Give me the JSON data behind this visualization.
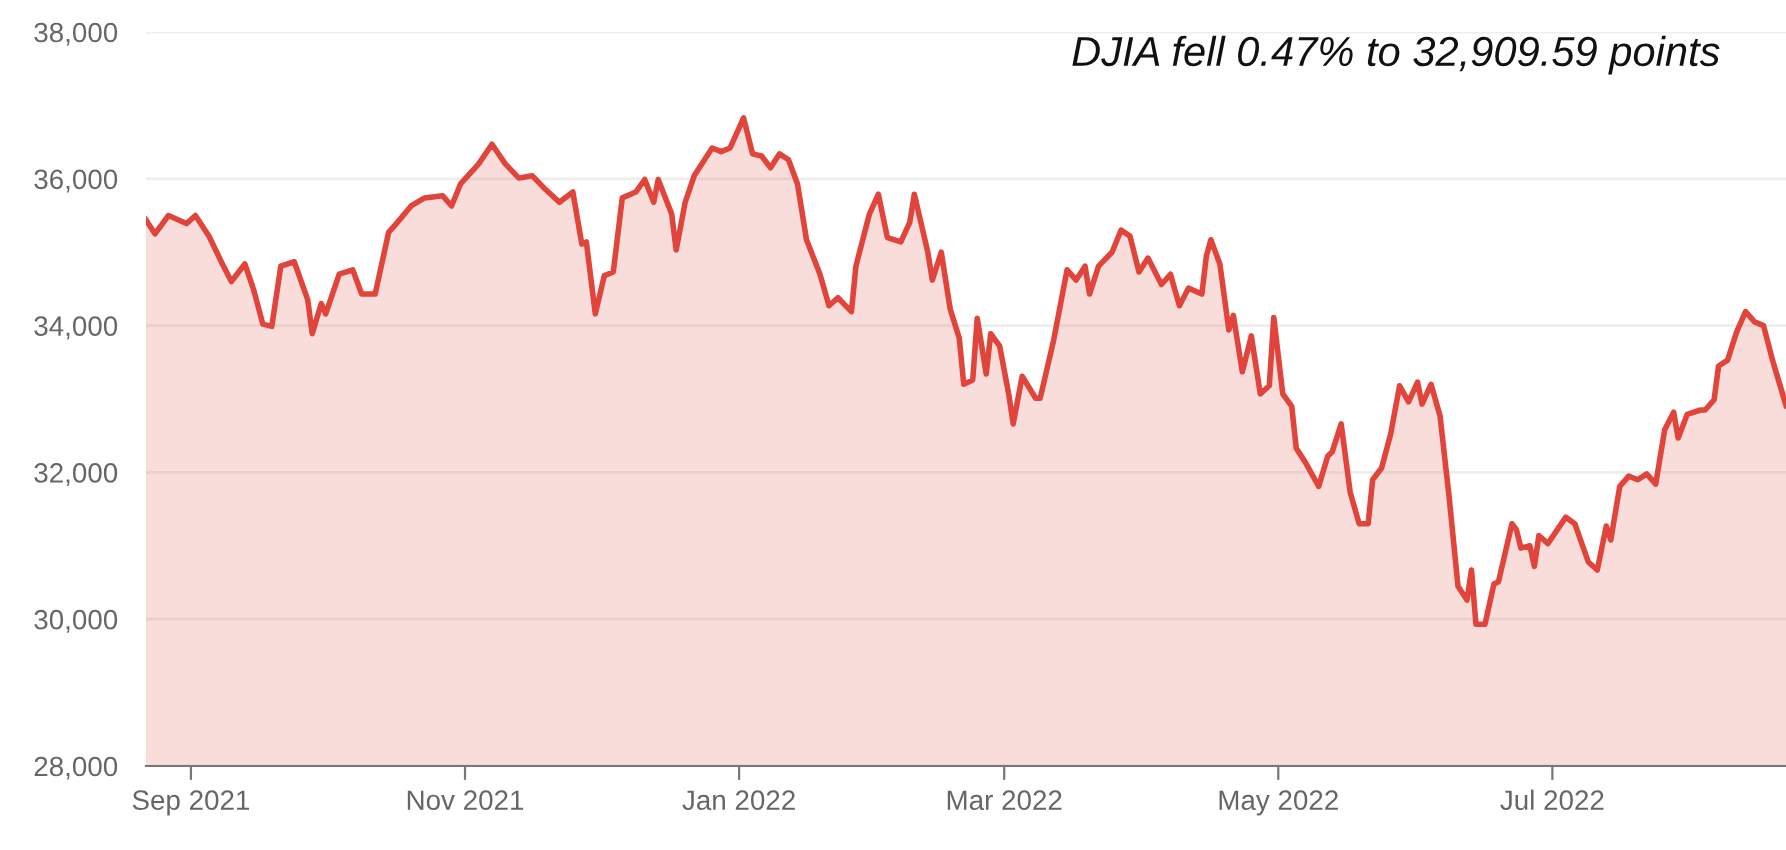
{
  "chart_data": {
    "type": "area",
    "annotations": [
      "DJIA fell 0.47% to 32,909.59 points"
    ],
    "x": [
      "2021-08-22",
      "2021-08-24",
      "2021-08-27",
      "2021-08-31",
      "2021-09-02",
      "2021-09-05",
      "2021-09-08",
      "2021-09-10",
      "2021-09-13",
      "2021-09-15",
      "2021-09-17",
      "2021-09-19",
      "2021-09-21",
      "2021-09-24",
      "2021-09-27",
      "2021-09-28",
      "2021-09-30",
      "2021-10-01",
      "2021-10-04",
      "2021-10-07",
      "2021-10-09",
      "2021-10-12",
      "2021-10-15",
      "2021-10-17",
      "2021-10-20",
      "2021-10-23",
      "2021-10-27",
      "2021-10-29",
      "2021-10-31",
      "2021-11-04",
      "2021-11-07",
      "2021-11-10",
      "2021-11-13",
      "2021-11-16",
      "2021-11-19",
      "2021-11-22",
      "2021-11-25",
      "2021-11-27",
      "2021-11-28",
      "2021-11-30",
      "2021-12-02",
      "2021-12-04",
      "2021-12-06",
      "2021-12-09",
      "2021-12-11",
      "2021-12-13",
      "2021-12-14",
      "2021-12-17",
      "2021-12-18",
      "2021-12-20",
      "2021-12-22",
      "2021-12-26",
      "2021-12-28",
      "2021-12-30",
      "2022-01-02",
      "2022-01-04",
      "2022-01-06",
      "2022-01-08",
      "2022-01-10",
      "2022-01-12",
      "2022-01-14",
      "2022-01-16",
      "2022-01-19",
      "2022-01-21",
      "2022-01-23",
      "2022-01-26",
      "2022-01-27",
      "2022-01-30",
      "2022-02-01",
      "2022-02-03",
      "2022-02-06",
      "2022-02-08",
      "2022-02-09",
      "2022-02-12",
      "2022-02-13",
      "2022-02-15",
      "2022-02-17",
      "2022-02-19",
      "2022-02-20",
      "2022-02-22",
      "2022-02-23",
      "2022-02-25",
      "2022-02-26",
      "2022-02-28",
      "2022-03-02",
      "2022-03-03",
      "2022-03-05",
      "2022-03-08",
      "2022-03-09",
      "2022-03-12",
      "2022-03-15",
      "2022-03-17",
      "2022-03-19",
      "2022-03-20",
      "2022-03-22",
      "2022-03-25",
      "2022-03-27",
      "2022-03-29",
      "2022-03-31",
      "2022-04-02",
      "2022-04-05",
      "2022-04-07",
      "2022-04-09",
      "2022-04-11",
      "2022-04-14",
      "2022-04-15",
      "2022-04-16",
      "2022-04-18",
      "2022-04-20",
      "2022-04-21",
      "2022-04-23",
      "2022-04-25",
      "2022-04-27",
      "2022-04-29",
      "2022-04-30",
      "2022-05-02",
      "2022-05-04",
      "2022-05-05",
      "2022-05-07",
      "2022-05-10",
      "2022-05-12",
      "2022-05-13",
      "2022-05-15",
      "2022-05-17",
      "2022-05-19",
      "2022-05-21",
      "2022-05-22",
      "2022-05-24",
      "2022-05-26",
      "2022-05-28",
      "2022-05-30",
      "2022-06-01",
      "2022-06-02",
      "2022-06-04",
      "2022-06-06",
      "2022-06-08",
      "2022-06-10",
      "2022-06-12",
      "2022-06-13",
      "2022-06-14",
      "2022-06-16",
      "2022-06-18",
      "2022-06-19",
      "2022-06-22",
      "2022-06-23",
      "2022-06-24",
      "2022-06-26",
      "2022-06-27",
      "2022-06-28",
      "2022-06-30",
      "2022-07-04",
      "2022-07-06",
      "2022-07-09",
      "2022-07-11",
      "2022-07-13",
      "2022-07-14",
      "2022-07-16",
      "2022-07-18",
      "2022-07-20",
      "2022-07-22",
      "2022-07-24",
      "2022-07-26",
      "2022-07-28",
      "2022-07-29",
      "2022-07-31",
      "2022-08-03",
      "2022-08-04",
      "2022-08-06",
      "2022-08-07",
      "2022-08-09",
      "2022-08-11",
      "2022-08-13",
      "2022-08-15",
      "2022-08-17",
      "2022-08-19",
      "2022-08-22"
    ],
    "series": [
      {
        "color": "#e0443a",
        "values": [
          35440,
          35250,
          35500,
          35390,
          35500,
          35220,
          34840,
          34600,
          34840,
          34480,
          34020,
          33990,
          34810,
          34870,
          34350,
          33890,
          34300,
          34160,
          34700,
          34760,
          34430,
          34430,
          35270,
          35410,
          35630,
          35740,
          35770,
          35630,
          35930,
          36200,
          36470,
          36200,
          36010,
          36040,
          35850,
          35680,
          35820,
          35110,
          35140,
          34160,
          34680,
          34730,
          35740,
          35820,
          35990,
          35680,
          35990,
          35520,
          35030,
          35680,
          36040,
          36420,
          36370,
          36420,
          36830,
          36340,
          36310,
          36150,
          36340,
          36260,
          35930,
          35170,
          34700,
          34270,
          34380,
          34190,
          34810,
          35520,
          35790,
          35200,
          35140,
          35410,
          35790,
          35000,
          34620,
          35000,
          34220,
          33830,
          33200,
          33260,
          34100,
          33340,
          33890,
          33720,
          33070,
          32660,
          33310,
          33010,
          33010,
          33800,
          34760,
          34620,
          34810,
          34430,
          34810,
          35000,
          35300,
          35220,
          34730,
          34920,
          34560,
          34700,
          34270,
          34510,
          34430,
          34950,
          35170,
          34840,
          33940,
          34140,
          33370,
          33860,
          33070,
          33180,
          34110,
          33070,
          32900,
          32330,
          32140,
          31810,
          32220,
          32280,
          32660,
          31730,
          31300,
          31300,
          31900,
          32060,
          32520,
          33180,
          32960,
          33230,
          32930,
          33200,
          32770,
          31680,
          30450,
          30260,
          30670,
          29930,
          29930,
          30480,
          30510,
          31300,
          31220,
          30970,
          31000,
          30720,
          31140,
          31030,
          31390,
          31300,
          30780,
          30670,
          31270,
          31080,
          31810,
          31950,
          31900,
          31980,
          31840,
          32580,
          32820,
          32470,
          32790,
          32850,
          32850,
          32990,
          33450,
          33530,
          33910,
          34190,
          34050,
          34000,
          33530,
          32910
        ]
      }
    ],
    "xlim": [
      "2021-08-22",
      "2022-08-22"
    ],
    "xticks": [
      {
        "value": "2021-09-01",
        "label": "Sep 2021"
      },
      {
        "value": "2021-11-01",
        "label": "Nov 2021"
      },
      {
        "value": "2022-01-01",
        "label": "Jan 2022"
      },
      {
        "value": "2022-03-01",
        "label": "Mar 2022"
      },
      {
        "value": "2022-05-01",
        "label": "May 2022"
      },
      {
        "value": "2022-07-01",
        "label": "Jul 2022"
      }
    ],
    "ylim": [
      28000,
      38000
    ],
    "yticks": [
      {
        "value": 28000,
        "label": "28,000"
      },
      {
        "value": 30000,
        "label": "30,000"
      },
      {
        "value": 32000,
        "label": "32,000"
      },
      {
        "value": 34000,
        "label": "34,000"
      },
      {
        "value": 36000,
        "label": "36,000"
      },
      {
        "value": 38000,
        "label": "38,000"
      }
    ],
    "grid": "y"
  }
}
